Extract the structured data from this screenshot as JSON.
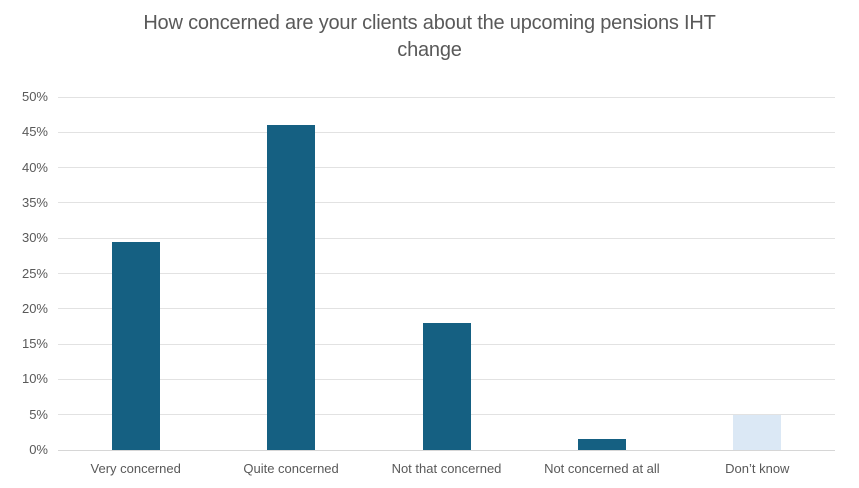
{
  "title": {
    "line1": "How concerned are your clients about the upcoming pensions IHT",
    "line2": "change"
  },
  "chart_data": {
    "type": "bar",
    "title": "How concerned are your clients about the upcoming pensions IHT change",
    "categories": [
      "Very concerned",
      "Quite concerned",
      "Not that concerned",
      "Not concerned at all",
      "Don’t know"
    ],
    "values": [
      29.5,
      46,
      18,
      1.5,
      5
    ],
    "unit": "%",
    "xlabel": "",
    "ylabel": "",
    "ylim": [
      0,
      50
    ],
    "ytick_step": 5,
    "ytick_labels": [
      "0%",
      "5%",
      "10%",
      "15%",
      "20%",
      "25%",
      "30%",
      "35%",
      "40%",
      "45%",
      "50%"
    ],
    "grid": true,
    "legend": false,
    "bar_colors": [
      "#156082",
      "#156082",
      "#156082",
      "#156082",
      "#DBE8F5"
    ],
    "colors": {
      "bar_primary": "#156082",
      "bar_highlight": "#DBE8F5",
      "gridline": "#E2E2E2",
      "axis_line": "#D6D6D6",
      "text": "#595959"
    }
  }
}
